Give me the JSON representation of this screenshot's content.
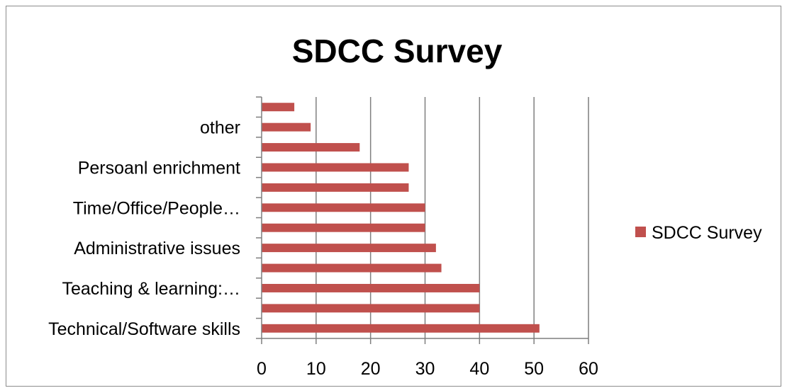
{
  "chart_data": {
    "type": "bar",
    "orientation": "horizontal",
    "title": "SDCC Survey",
    "xlabel": "",
    "ylabel": "",
    "xlim": [
      0,
      60
    ],
    "x_ticks": [
      0,
      10,
      20,
      30,
      40,
      50,
      60
    ],
    "grid": "vertical",
    "legend_position": "right",
    "bar_color": "#c0504d",
    "categories": [
      "Technical/Software skills",
      "",
      "Teaching & learning:…",
      "",
      "Administrative issues",
      "",
      "Time/Office/People…",
      "",
      "Persoanl enrichment",
      "",
      "other",
      ""
    ],
    "series": [
      {
        "name": "SDCC Survey",
        "values": [
          51,
          40,
          40,
          33,
          32,
          30,
          30,
          27,
          27,
          18,
          9,
          6
        ]
      }
    ]
  }
}
